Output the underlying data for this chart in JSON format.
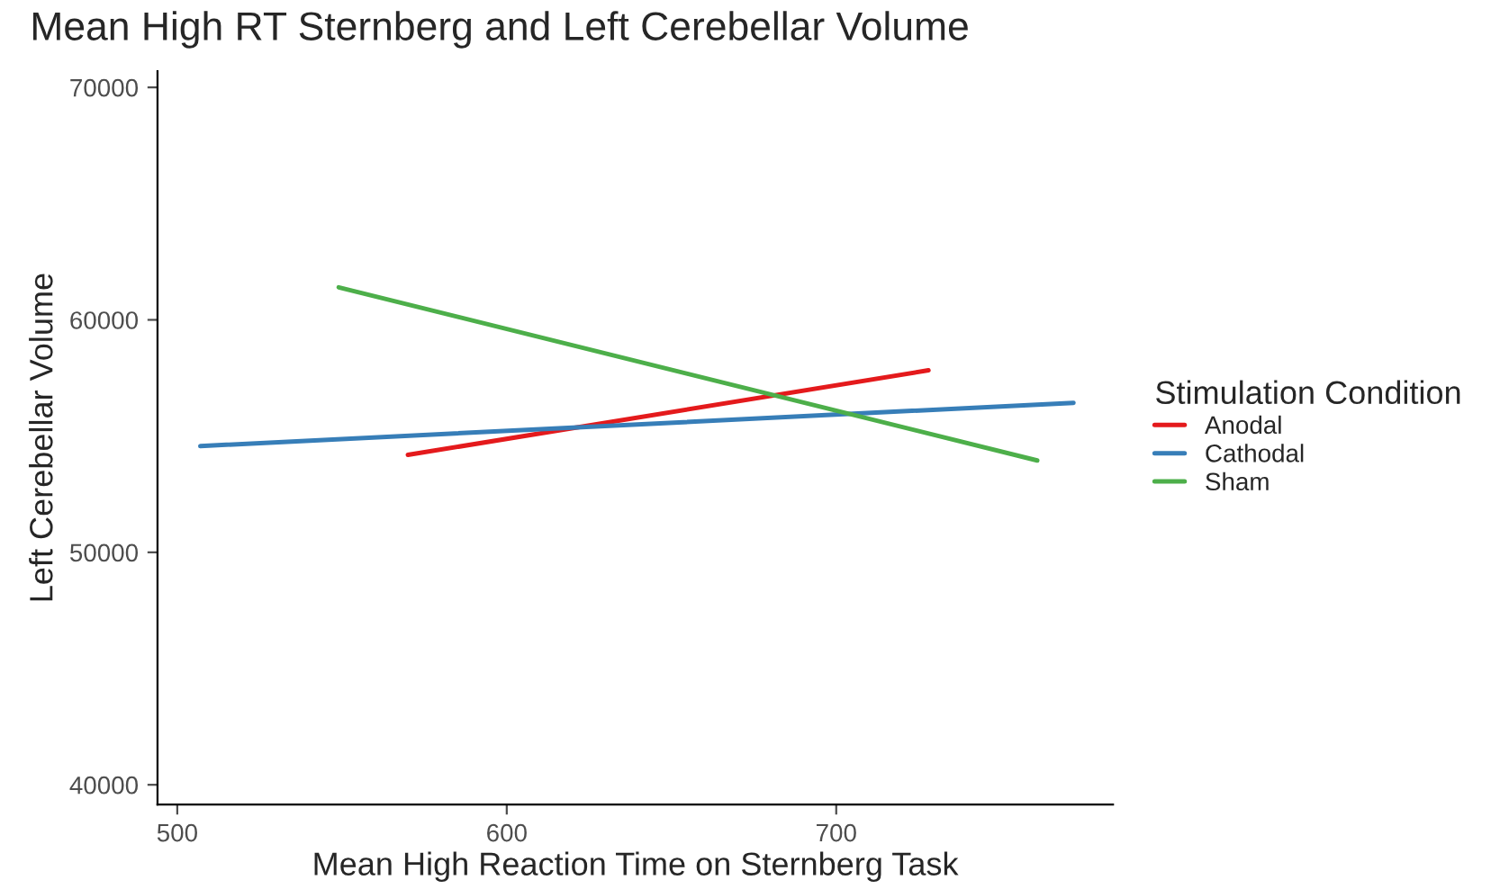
{
  "chart_data": {
    "type": "line",
    "title": "Mean High RT Sternberg and Left Cerebellar Volume",
    "xlabel": "Mean High Reaction Time on Sternberg Task",
    "ylabel": "Left Cerebellar Volume",
    "legend_title": "Stimulation Condition",
    "legend": "right",
    "grid": false,
    "xlim": [
      494,
      784
    ],
    "ylim": [
      39150,
      70700
    ],
    "xticks": [
      500,
      600,
      700
    ],
    "yticks": [
      40000,
      50000,
      60000,
      70000
    ],
    "series": [
      {
        "name": "Anodal",
        "color": "#e41a1c",
        "x": [
          570,
          728
        ],
        "values": [
          54190,
          57830
        ]
      },
      {
        "name": "Cathodal",
        "color": "#377eb8",
        "x": [
          507,
          772
        ],
        "values": [
          54570,
          56430
        ]
      },
      {
        "name": "Sham",
        "color": "#4daf4a",
        "x": [
          549,
          761
        ],
        "values": [
          61400,
          53950
        ]
      }
    ]
  }
}
